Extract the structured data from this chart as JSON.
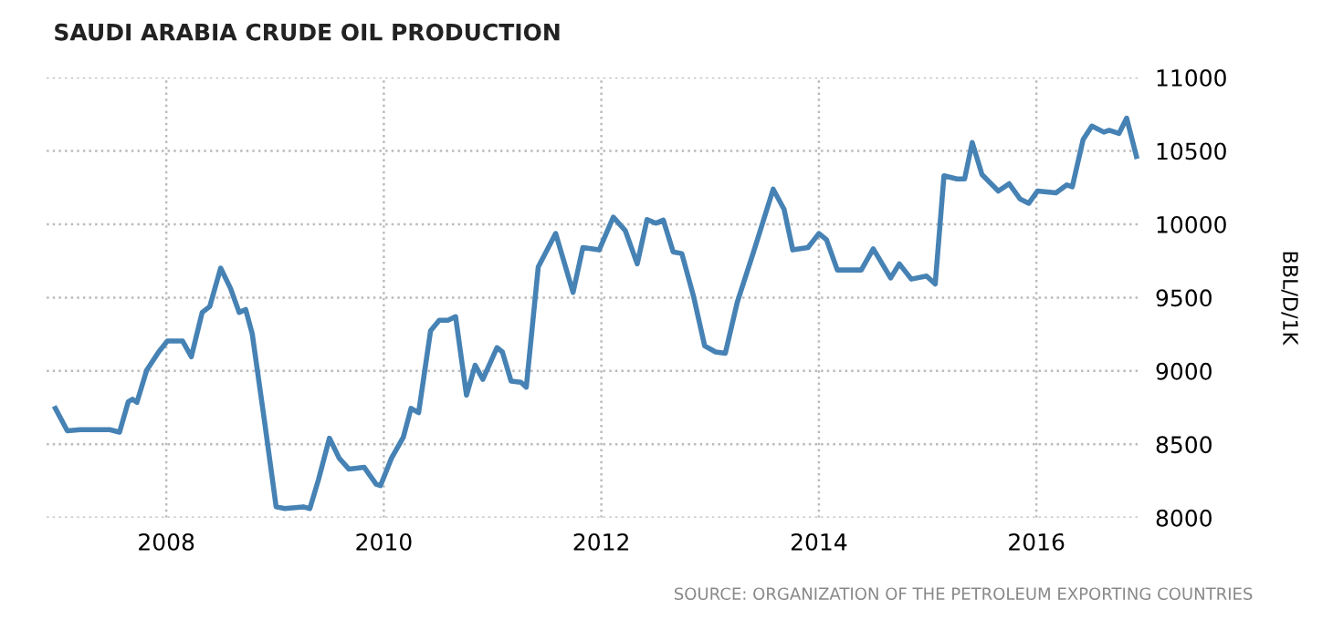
{
  "chart_data": {
    "type": "line",
    "title": "SAUDI ARABIA CRUDE OIL PRODUCTION",
    "ylabel": "BBL/D/1K",
    "annotations": [
      "SOURCE: ORGANIZATION OF THE PETROLEUM EXPORTING COUNTRIES"
    ],
    "xlim": [
      2006.9,
      2016.95
    ],
    "xticks": [
      2008,
      2010,
      2012,
      2014,
      2016
    ],
    "ylim": [
      8000,
      11000
    ],
    "yticks": [
      8000,
      8500,
      9000,
      9500,
      10000,
      10500,
      11000
    ],
    "grid": true,
    "legend": false,
    "marker": "none",
    "line_style": "solid",
    "series": [
      {
        "color": "#4682b4",
        "x": [
          2006.98,
          2007.09,
          2007.21,
          2007.48,
          2007.57,
          2007.65,
          2007.69,
          2007.73,
          2007.82,
          2007.93,
          2008.01,
          2008.15,
          2008.23,
          2008.33,
          2008.4,
          2008.5,
          2008.59,
          2008.67,
          2008.73,
          2008.79,
          2008.9,
          2009.01,
          2009.09,
          2009.26,
          2009.32,
          2009.4,
          2009.5,
          2009.59,
          2009.68,
          2009.82,
          2009.93,
          2009.97,
          2010.07,
          2010.18,
          2010.25,
          2010.32,
          2010.43,
          2010.51,
          2010.59,
          2010.66,
          2010.76,
          2010.84,
          2010.91,
          2011.04,
          2011.09,
          2011.17,
          2011.26,
          2011.31,
          2011.42,
          2011.58,
          2011.74,
          2011.83,
          2011.98,
          2012.11,
          2012.22,
          2012.33,
          2012.42,
          2012.5,
          2012.57,
          2012.66,
          2012.74,
          2012.85,
          2012.95,
          2013.05,
          2013.14,
          2013.25,
          2013.4,
          2013.58,
          2013.68,
          2013.76,
          2013.9,
          2014.0,
          2014.07,
          2014.17,
          2014.39,
          2014.5,
          2014.66,
          2014.74,
          2014.85,
          2014.99,
          2015.07,
          2015.15,
          2015.27,
          2015.34,
          2015.41,
          2015.5,
          2015.65,
          2015.75,
          2015.85,
          2015.93,
          2016.01,
          2016.18,
          2016.28,
          2016.33,
          2016.43,
          2016.51,
          2016.62,
          2016.67,
          2016.76,
          2016.83,
          2016.92
        ],
        "values": [
          8745,
          8592,
          8600,
          8600,
          8583,
          8790,
          8807,
          8786,
          9005,
          9130,
          9204,
          9204,
          9097,
          9399,
          9440,
          9701,
          9564,
          9399,
          9419,
          9254,
          8674,
          8074,
          8062,
          8074,
          8062,
          8261,
          8542,
          8405,
          8331,
          8343,
          8228,
          8219,
          8405,
          8550,
          8745,
          8716,
          9274,
          9345,
          9345,
          9370,
          8835,
          9039,
          8943,
          9159,
          9130,
          8931,
          8923,
          8890,
          9709,
          9937,
          9535,
          9841,
          9825,
          10048,
          9957,
          9730,
          10032,
          10007,
          10028,
          9812,
          9800,
          9502,
          9171,
          9130,
          9121,
          9469,
          9812,
          10239,
          10102,
          9825,
          9841,
          9937,
          9895,
          9688,
          9688,
          9833,
          9634,
          9730,
          9626,
          9647,
          9593,
          10330,
          10309,
          10309,
          10557,
          10338,
          10226,
          10276,
          10172,
          10143,
          10226,
          10214,
          10268,
          10255,
          10578,
          10669,
          10628,
          10640,
          10619,
          10723,
          10462
        ]
      }
    ]
  }
}
